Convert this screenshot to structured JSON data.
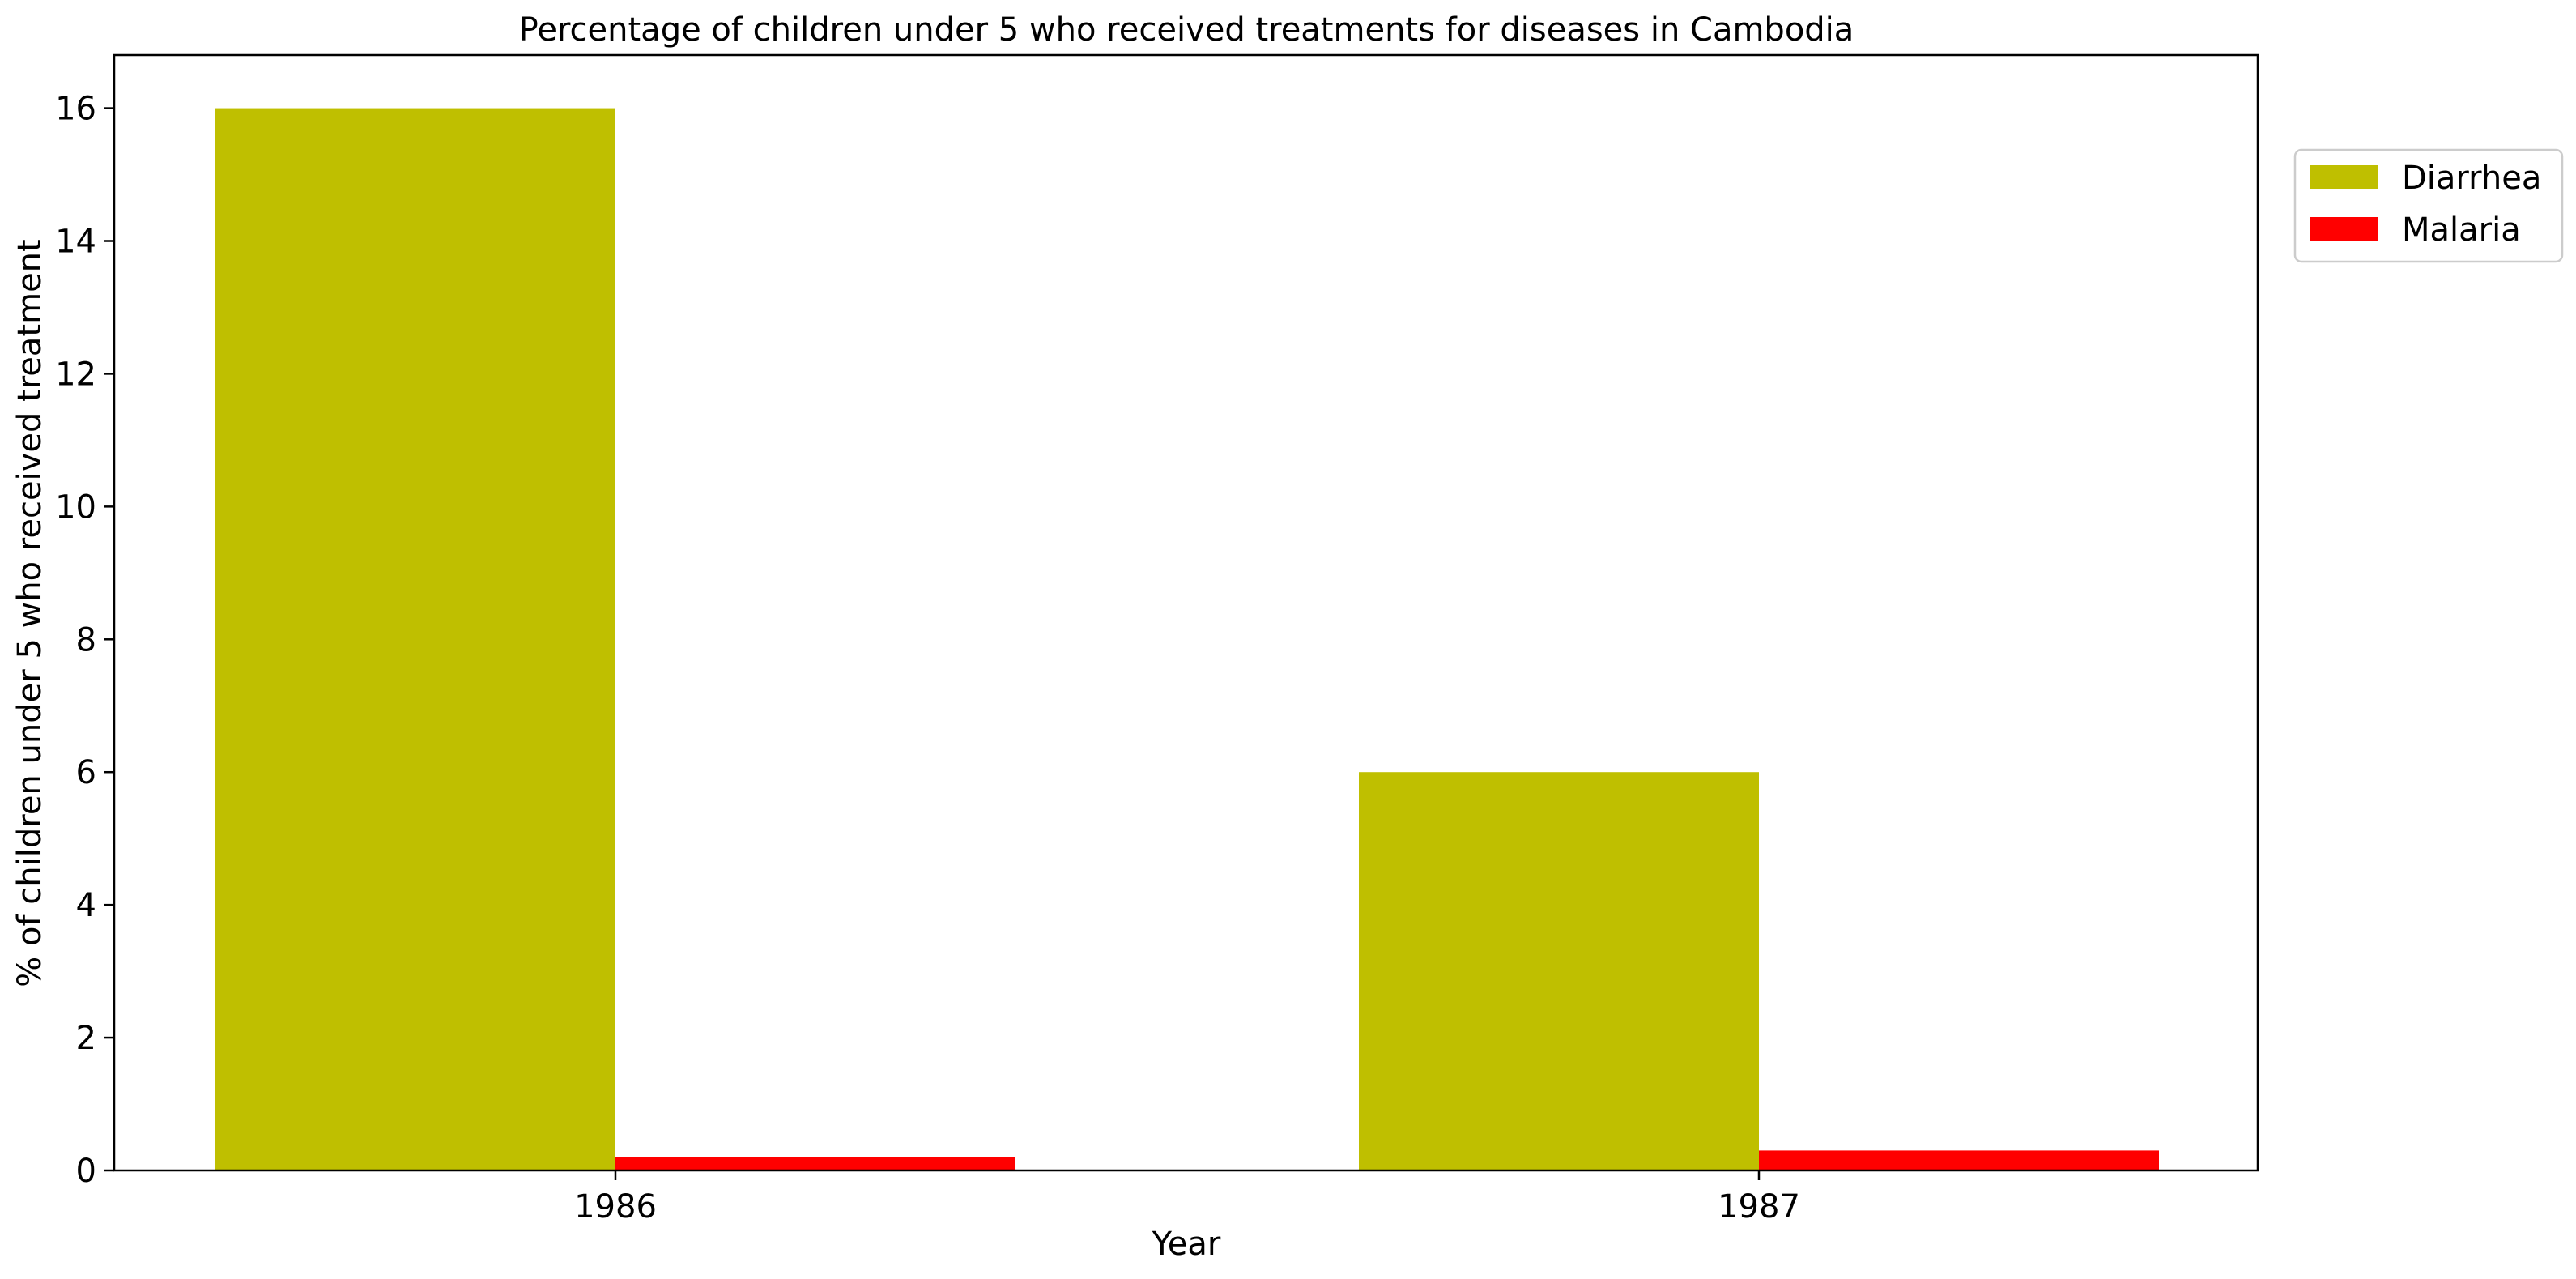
{
  "chart_data": {
    "type": "bar",
    "title": "Percentage of children under 5 who received treatments for diseases in Cambodia",
    "xlabel": "Year",
    "ylabel": "% of children under 5 who received treatment",
    "categories": [
      "1986",
      "1987"
    ],
    "series": [
      {
        "name": "Diarrhea",
        "values": [
          16.0,
          6.0
        ],
        "color": "#bfbf00"
      },
      {
        "name": "Malaria",
        "values": [
          0.2,
          0.3
        ],
        "color": "#ff0000"
      }
    ],
    "ylim": [
      0,
      16.8
    ],
    "yticks": [
      0,
      2,
      4,
      6,
      8,
      10,
      12,
      14,
      16
    ],
    "grid": false,
    "legend_position": "upper right, outside plot"
  }
}
